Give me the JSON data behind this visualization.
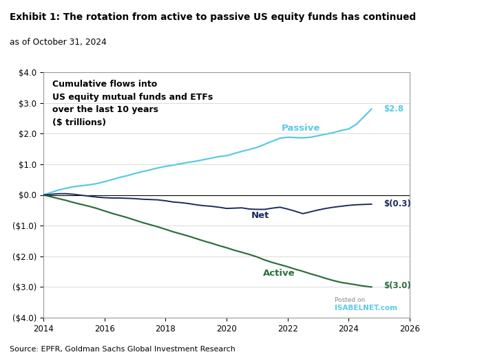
{
  "title": "Exhibit 1: The rotation from active to passive US equity funds has continued",
  "subtitle": "as of October 31, 2024",
  "annotation": "Cumulative flows into\nUS equity mutual funds and ETFs\nover the last 10 years\n($ trillions)",
  "source": "Source: EPFR, Goldman Sachs Global Investment Research",
  "xlim": [
    2014,
    2026
  ],
  "ylim": [
    -4.0,
    4.0
  ],
  "yticks": [
    -4.0,
    -3.0,
    -2.0,
    -1.0,
    0.0,
    1.0,
    2.0,
    3.0,
    4.0
  ],
  "ytick_labels": [
    "($4.0)",
    "($3.0)",
    "($2.0)",
    "($1.0)",
    "$0.0",
    "$1.0",
    "$2.0",
    "$3.0",
    "$4.0"
  ],
  "xticks": [
    2014,
    2016,
    2018,
    2020,
    2022,
    2024,
    2026
  ],
  "passive_color": "#5BC8E8",
  "active_color": "#2D6E3E",
  "net_color": "#1B2A5E",
  "passive_label": "Passive",
  "active_label": "Active",
  "net_label": "Net",
  "passive_end_label": "$2.8",
  "active_end_label": "$(3.0)",
  "net_end_label": "$(0.3)",
  "passive_x": [
    2014.0,
    2014.25,
    2014.5,
    2014.75,
    2015.0,
    2015.25,
    2015.5,
    2015.75,
    2016.0,
    2016.25,
    2016.5,
    2016.75,
    2017.0,
    2017.25,
    2017.5,
    2017.75,
    2018.0,
    2018.25,
    2018.5,
    2018.75,
    2019.0,
    2019.25,
    2019.5,
    2019.75,
    2020.0,
    2020.25,
    2020.5,
    2020.75,
    2021.0,
    2021.25,
    2021.5,
    2021.75,
    2022.0,
    2022.25,
    2022.5,
    2022.75,
    2023.0,
    2023.25,
    2023.5,
    2023.75,
    2024.0,
    2024.25,
    2024.5,
    2024.75
  ],
  "passive_y": [
    0.0,
    0.08,
    0.16,
    0.22,
    0.27,
    0.3,
    0.33,
    0.37,
    0.43,
    0.5,
    0.57,
    0.63,
    0.7,
    0.76,
    0.82,
    0.88,
    0.93,
    0.97,
    1.02,
    1.06,
    1.1,
    1.15,
    1.2,
    1.25,
    1.28,
    1.35,
    1.42,
    1.48,
    1.55,
    1.65,
    1.75,
    1.85,
    1.88,
    1.87,
    1.86,
    1.88,
    1.93,
    1.98,
    2.03,
    2.1,
    2.15,
    2.3,
    2.55,
    2.8
  ],
  "active_x": [
    2014.0,
    2014.25,
    2014.5,
    2014.75,
    2015.0,
    2015.25,
    2015.5,
    2015.75,
    2016.0,
    2016.25,
    2016.5,
    2016.75,
    2017.0,
    2017.25,
    2017.5,
    2017.75,
    2018.0,
    2018.25,
    2018.5,
    2018.75,
    2019.0,
    2019.25,
    2019.5,
    2019.75,
    2020.0,
    2020.25,
    2020.5,
    2020.75,
    2021.0,
    2021.25,
    2021.5,
    2021.75,
    2022.0,
    2022.25,
    2022.5,
    2022.75,
    2023.0,
    2023.25,
    2023.5,
    2023.75,
    2024.0,
    2024.25,
    2024.5,
    2024.75
  ],
  "active_y": [
    0.0,
    -0.06,
    -0.12,
    -0.18,
    -0.25,
    -0.31,
    -0.37,
    -0.44,
    -0.52,
    -0.6,
    -0.67,
    -0.74,
    -0.82,
    -0.9,
    -0.97,
    -1.04,
    -1.12,
    -1.2,
    -1.27,
    -1.34,
    -1.42,
    -1.5,
    -1.57,
    -1.65,
    -1.72,
    -1.8,
    -1.87,
    -1.94,
    -2.02,
    -2.12,
    -2.2,
    -2.27,
    -2.34,
    -2.42,
    -2.49,
    -2.57,
    -2.64,
    -2.72,
    -2.79,
    -2.85,
    -2.89,
    -2.93,
    -2.97,
    -3.0
  ],
  "net_x": [
    2014.0,
    2014.25,
    2014.5,
    2014.75,
    2015.0,
    2015.25,
    2015.5,
    2015.75,
    2016.0,
    2016.25,
    2016.5,
    2016.75,
    2017.0,
    2017.25,
    2017.5,
    2017.75,
    2018.0,
    2018.25,
    2018.5,
    2018.75,
    2019.0,
    2019.25,
    2019.5,
    2019.75,
    2020.0,
    2020.25,
    2020.5,
    2020.75,
    2021.0,
    2021.25,
    2021.5,
    2021.75,
    2022.0,
    2022.25,
    2022.5,
    2022.75,
    2023.0,
    2023.25,
    2023.5,
    2023.75,
    2024.0,
    2024.25,
    2024.5,
    2024.75
  ],
  "net_y": [
    0.0,
    0.02,
    0.04,
    0.04,
    0.02,
    -0.01,
    -0.04,
    -0.07,
    -0.09,
    -0.1,
    -0.1,
    -0.11,
    -0.12,
    -0.14,
    -0.15,
    -0.16,
    -0.19,
    -0.23,
    -0.25,
    -0.28,
    -0.32,
    -0.35,
    -0.37,
    -0.4,
    -0.44,
    -0.43,
    -0.42,
    -0.46,
    -0.47,
    -0.47,
    -0.43,
    -0.4,
    -0.46,
    -0.53,
    -0.61,
    -0.55,
    -0.49,
    -0.44,
    -0.4,
    -0.37,
    -0.34,
    -0.32,
    -0.31,
    -0.3
  ],
  "background_color": "#FFFFFF",
  "plot_bg_color": "#FFFFFF",
  "watermark_line1": "Posted on",
  "watermark_line2": "ISABELNET.com",
  "watermark_color": "#888888",
  "watermark_color2": "#5BC8E8"
}
